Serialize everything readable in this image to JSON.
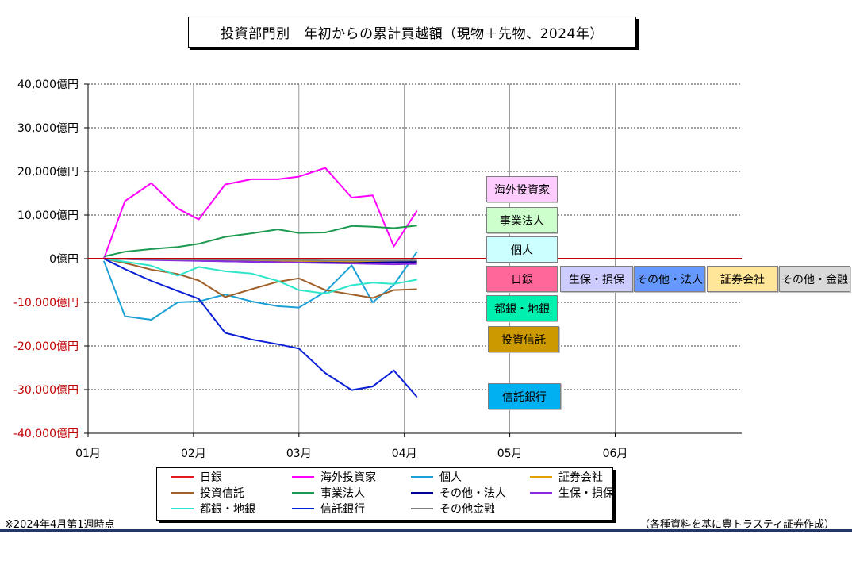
{
  "chart_data": {
    "type": "line",
    "title": "投資部門別　年初からの累計買越額（現物＋先物、2024年）",
    "ylim": [
      -40000,
      40000
    ],
    "y_ticks": [
      40000,
      30000,
      20000,
      10000,
      0,
      -10000,
      -20000,
      -30000,
      -40000
    ],
    "y_tick_labels": [
      "40,000億円",
      "30,000億円",
      "20,000億円",
      "10,000億円",
      "0億円",
      "-10,000億円",
      "-20,000億円",
      "-30,000億円",
      "-40,000億円"
    ],
    "x_ticks": [
      1,
      2,
      3,
      4,
      5,
      6
    ],
    "x_tick_labels": [
      "01月",
      "02月",
      "03月",
      "04月",
      "05月",
      "06月"
    ],
    "grid": true,
    "legend_position": "bottom",
    "x": [
      1.15,
      1.35,
      1.6,
      1.85,
      2.05,
      2.3,
      2.55,
      2.8,
      3.0,
      3.25,
      3.5,
      3.7,
      3.9,
      4.12
    ],
    "series": [
      {
        "name": "日銀",
        "color": "#e31a1c",
        "values": [
          0,
          0,
          0,
          0,
          0,
          0,
          0,
          0,
          0,
          0,
          0,
          0,
          0,
          0
        ]
      },
      {
        "name": "海外投資家",
        "color": "#ff00ff",
        "values": [
          0,
          13200,
          17300,
          11500,
          9000,
          17000,
          18200,
          18200,
          18800,
          20800,
          14000,
          14500,
          2800,
          11000
        ]
      },
      {
        "name": "個人",
        "color": "#1ba1d6",
        "values": [
          -500,
          -13200,
          -14000,
          -10000,
          -9800,
          -8200,
          -9800,
          -10900,
          -11200,
          -7600,
          -1500,
          -10000,
          -6000,
          1600
        ]
      },
      {
        "name": "証券会社",
        "color": "#e3a000",
        "values": [
          0,
          -100,
          -200,
          -300,
          -300,
          -400,
          -500,
          -500,
          -500,
          -600,
          -700,
          -700,
          -800,
          -800
        ]
      },
      {
        "name": "投資信託",
        "color": "#a0602a",
        "values": [
          0,
          -1000,
          -2500,
          -3500,
          -5000,
          -8800,
          -7000,
          -5300,
          -4500,
          -7200,
          -8200,
          -9000,
          -7200,
          -7000
        ]
      },
      {
        "name": "事業法人",
        "color": "#1e9a50",
        "values": [
          500,
          1600,
          2200,
          2700,
          3400,
          5000,
          5800,
          6700,
          5900,
          6000,
          7500,
          7300,
          7000,
          7600
        ]
      },
      {
        "name": "その他・法人",
        "color": "#00009a",
        "values": [
          0,
          -100,
          -200,
          -300,
          -400,
          -600,
          -700,
          -800,
          -900,
          -900,
          -1000,
          -900,
          -800,
          -700
        ]
      },
      {
        "name": "生保・損保",
        "color": "#8a2be2",
        "values": [
          0,
          -100,
          -300,
          -400,
          -500,
          -600,
          -700,
          -800,
          -900,
          -1000,
          -1100,
          -1200,
          -1300,
          -1200
        ]
      },
      {
        "name": "都銀・地銀",
        "color": "#2ee6c9",
        "values": [
          0,
          -700,
          -1600,
          -3900,
          -1900,
          -2900,
          -3400,
          -5100,
          -7200,
          -8000,
          -6100,
          -5500,
          -5800,
          -4800
        ]
      },
      {
        "name": "信託銀行",
        "color": "#0a1fd6",
        "values": [
          0,
          -2400,
          -5100,
          -7400,
          -9200,
          -17000,
          -18500,
          -19600,
          -20600,
          -26200,
          -30100,
          -29300,
          -25600,
          -31700
        ]
      },
      {
        "name": "その他金融",
        "color": "#7f7f7f",
        "values": [
          0,
          -100,
          -100,
          -200,
          -200,
          -200,
          -300,
          -300,
          -300,
          -400,
          -400,
          -400,
          -400,
          -400
        ]
      }
    ],
    "annotations": [
      {
        "text": "海外投資家",
        "bg": "#ffccff"
      },
      {
        "text": "事業法人",
        "bg": "#ccffcc"
      },
      {
        "text": "個人",
        "bg": "#ccffff"
      },
      {
        "text": "日銀",
        "bg": "#ff6699"
      },
      {
        "text": "生保・損保",
        "bg": "#ccccff"
      },
      {
        "text": "その他・法人",
        "bg": "#6699ff"
      },
      {
        "text": "証券会社",
        "bg": "#ffe699"
      },
      {
        "text": "その他・金融",
        "bg": "#d9d9d9"
      },
      {
        "text": "都銀・地銀",
        "bg": "#00f0b0"
      },
      {
        "text": "投資信託",
        "bg": "#cc9900"
      },
      {
        "text": "信託銀行",
        "bg": "#00b0f0"
      }
    ]
  },
  "notes": {
    "left": "※2024年4月第1週時点",
    "right": "（各種資料を基に豊トラスティ証券作成）"
  },
  "colors": {
    "zero_line": "#c00000",
    "negative_label": "#c00000",
    "footer_line": "#1f3864"
  }
}
